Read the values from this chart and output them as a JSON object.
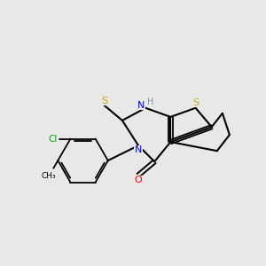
{
  "bg_color": "#e8e8e8",
  "atom_colors": {
    "S": "#ccaa00",
    "N": "#0000ff",
    "O": "#ff0000",
    "Cl": "#00aa00",
    "C": "#000000",
    "H": "#7799aa"
  }
}
